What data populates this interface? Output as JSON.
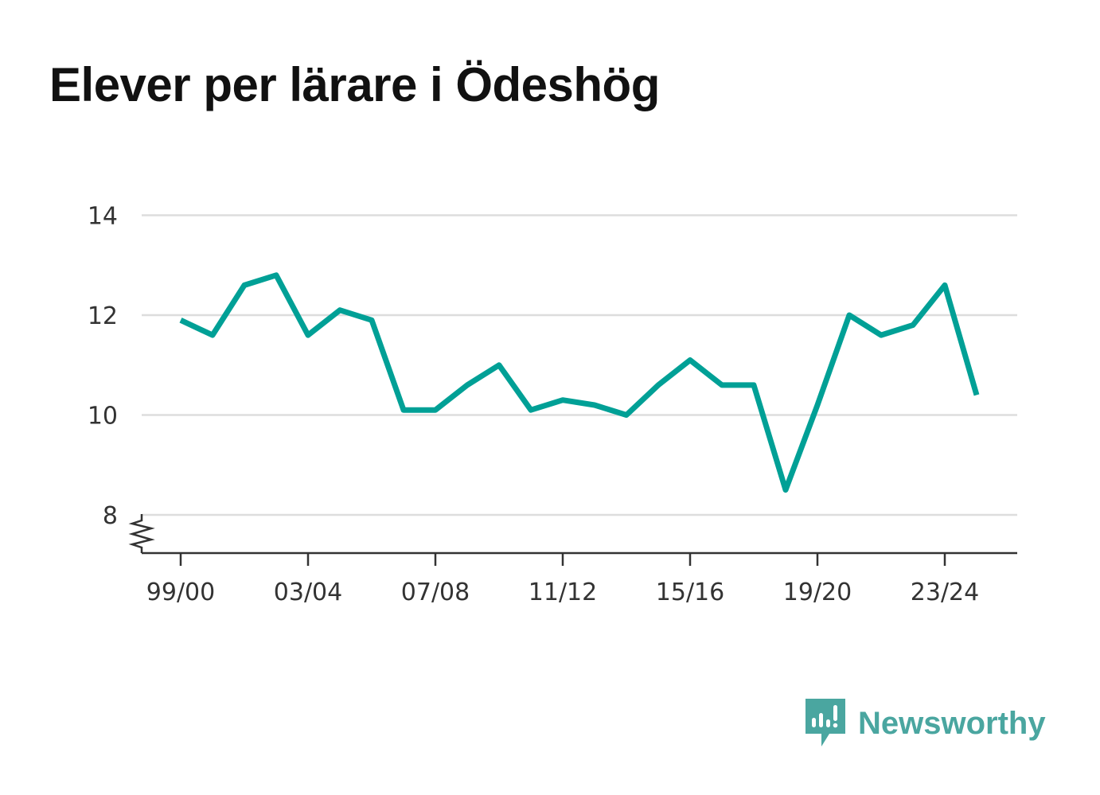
{
  "chart_data": {
    "type": "line",
    "title": "Elever per lärare i Ödeshög",
    "xlabel": "",
    "ylabel": "",
    "x": [
      "99/00",
      "00/01",
      "01/02",
      "02/03",
      "03/04",
      "04/05",
      "05/06",
      "06/07",
      "07/08",
      "08/09",
      "09/10",
      "10/11",
      "11/12",
      "12/13",
      "13/14",
      "14/15",
      "15/16",
      "16/17",
      "17/18",
      "18/19",
      "19/20",
      "20/21",
      "21/22",
      "22/23",
      "23/24",
      "24/25"
    ],
    "values": [
      11.9,
      11.6,
      12.6,
      12.8,
      11.6,
      12.1,
      11.9,
      10.1,
      10.1,
      10.6,
      11.0,
      10.1,
      10.3,
      10.2,
      10.0,
      10.6,
      11.1,
      10.6,
      10.6,
      8.5,
      10.2,
      12.0,
      11.6,
      11.8,
      12.6,
      10.4
    ],
    "x_tick_labels": [
      "99/00",
      "03/04",
      "07/08",
      "11/12",
      "15/16",
      "19/20",
      "23/24"
    ],
    "y_ticks": [
      8,
      10,
      12,
      14
    ],
    "ylim": [
      7.2,
      14
    ],
    "y_axis_break": true,
    "grid": true,
    "legend": "none",
    "line_color": "#00a096"
  },
  "brand": {
    "name": "Newsworthy",
    "color": "#4aa6a0"
  }
}
